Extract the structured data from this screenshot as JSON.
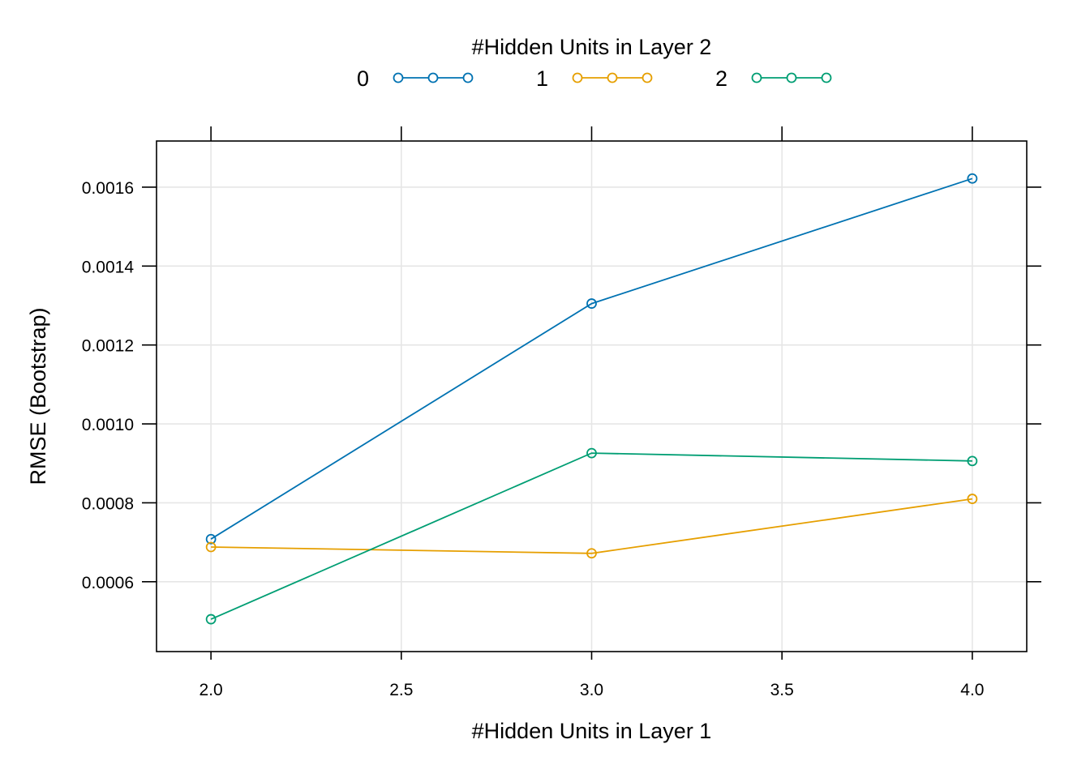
{
  "chart_data": {
    "type": "line",
    "title": "",
    "xlabel": "#Hidden Units in Layer 1",
    "ylabel": "RMSE (Bootstrap)",
    "xlim": [
      1.857,
      4.143
    ],
    "ylim": [
      0.000423,
      0.001717
    ],
    "x_ticks": [
      2.0,
      2.5,
      3.0,
      3.5,
      4.0
    ],
    "x_tick_labels": [
      "2.0",
      "2.5",
      "3.0",
      "3.5",
      "4.0"
    ],
    "y_ticks": [
      0.0006,
      0.0008,
      0.001,
      0.0012,
      0.0014,
      0.0016
    ],
    "y_tick_labels": [
      "0.0006",
      "0.0008",
      "0.0010",
      "0.0012",
      "0.0014",
      "0.0016"
    ],
    "grid": true,
    "legend": {
      "title": "#Hidden Units in Layer 2",
      "placement": "top"
    },
    "x": [
      2,
      3,
      4
    ],
    "series": [
      {
        "name": "0",
        "color": "#0072B2",
        "values": [
          0.000708,
          0.001305,
          0.001622
        ]
      },
      {
        "name": "1",
        "color": "#E69F00",
        "values": [
          0.000688,
          0.000672,
          0.00081
        ]
      },
      {
        "name": "2",
        "color": "#009E73",
        "values": [
          0.000505,
          0.000926,
          0.000906
        ]
      }
    ]
  }
}
